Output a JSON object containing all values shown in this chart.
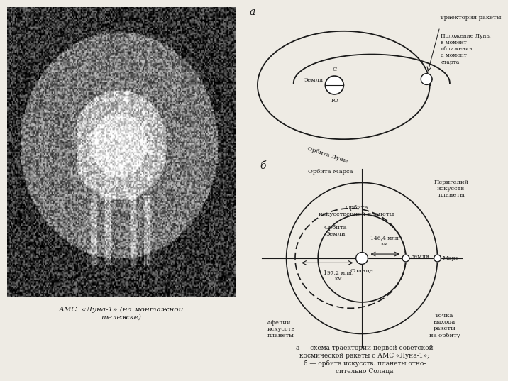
{
  "bg_color": "#eeebe4",
  "line_color": "#1a1a1a",
  "text_color": "#1a1a1a",
  "panel_a_label": "а",
  "panel_b_label": "б",
  "diagram_a": {
    "trajectory_label": "Траектория ракеты",
    "moon_pos_label": "Положение Луны\nв момент\nсближения\nа момент\nстарта",
    "earth_label": "Земля",
    "north_label": "С",
    "south_label": "Ю",
    "moon_orbit_label": "Орбита Луны"
  },
  "diagram_b": {
    "mars_orbit_label": "Орбита Марса",
    "art_planet_orbit_label": "Орбита\nискусственной планеты",
    "earth_orbit_label": "Орбита\nЗемли",
    "sun_label": "Солнце",
    "earth_label": "Земля",
    "mars_label": "Марс",
    "perihelion_label": "Перигелий\nискусств.\nпланеты",
    "aphelion_label": "Афелий\nискусств\nпланеты",
    "launch_point_label": "Точка\nвыхода\nракеты\nна орбиту",
    "dist1_label": "146,4 млн\nкм",
    "dist2_label": "197,2 млн.\nкм"
  },
  "caption_photo": "АМС  «Луна-1» (на монтажной\nтележке)",
  "caption_main": "а — схема траектории первой советской\nкосмической ракеты с АМС «Луна-1»;\nб — орбита искусств. планеты отно-\nсительно Солнца"
}
